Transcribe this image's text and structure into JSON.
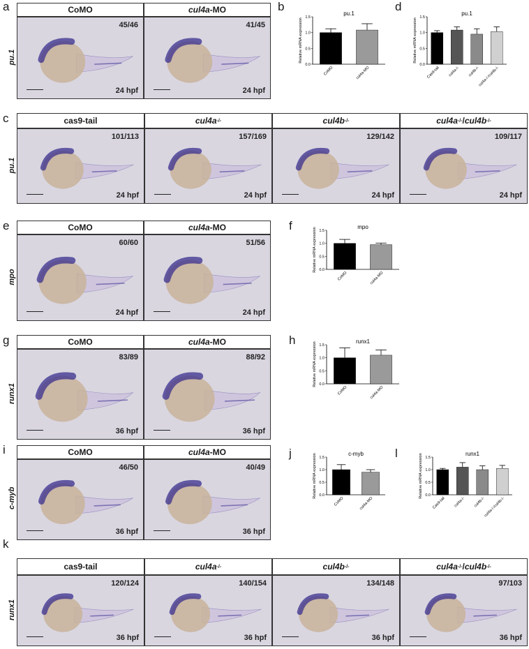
{
  "panels": {
    "a": {
      "letter": "a",
      "gene": "pu.1",
      "headers": [
        "CoMO",
        "cul4a-MO"
      ],
      "counts": [
        "45/46",
        "41/45"
      ],
      "stage": "24 hpf"
    },
    "c": {
      "letter": "c",
      "gene": "pu.1",
      "headers": [
        "cas9-tail",
        "cul4a-/-",
        "cul4b-/-",
        "cul4a-/- / cul4b-/-"
      ],
      "counts": [
        "101/113",
        "157/169",
        "129/142",
        "109/117"
      ],
      "stage": "24 hpf"
    },
    "e": {
      "letter": "e",
      "gene": "mpo",
      "headers": [
        "CoMO",
        "cul4a-MO"
      ],
      "counts": [
        "60/60",
        "51/56"
      ],
      "stage": "24 hpf"
    },
    "g": {
      "letter": "g",
      "gene": "runx1",
      "headers": [
        "CoMO",
        "cul4a-MO"
      ],
      "counts": [
        "83/89",
        "88/92"
      ],
      "stage": "36 hpf"
    },
    "i": {
      "letter": "i",
      "gene": "c-myb",
      "headers": [
        "CoMO",
        "cul4a-MO"
      ],
      "counts": [
        "46/50",
        "40/49"
      ],
      "stage": "36 hpf"
    },
    "k": {
      "letter": "k",
      "gene": "runx1",
      "headers": [
        "cas9-tail",
        "cul4a-/-",
        "cul4b-/-",
        "cul4a-/- / cul4b-/-"
      ],
      "counts": [
        "120/124",
        "140/154",
        "134/148",
        "97/103"
      ],
      "stage": "36 hpf"
    }
  },
  "colors": {
    "bar1": "#000000",
    "bar2": "#555555",
    "bar3": "#8a8a8a",
    "bar4": "#d0d0d0",
    "embryo_stain": "#3a2f8f",
    "embryo_yolk": "#c8b39a",
    "bg_photo": "#d9d6e0"
  },
  "chart_data": [
    {
      "id": "b",
      "type": "bar",
      "title": "pu.1",
      "ylabel": "Relative mRNA expression",
      "categories": [
        "CoMO",
        "cul4a-MO"
      ],
      "values": [
        1.0,
        1.08
      ],
      "errors": [
        0.12,
        0.2
      ],
      "ylim": [
        0,
        1.5
      ],
      "yticks": [
        "0.0",
        "0.5",
        "1.0",
        "1.5"
      ]
    },
    {
      "id": "d",
      "type": "bar",
      "title": "pu.1",
      "ylabel": "Relative mRNA expression",
      "categories": [
        "Cas9-tail",
        "cul4a-/-",
        "cul4b-/-",
        "cul4a-/-/cul4b-/-"
      ],
      "values": [
        1.0,
        1.08,
        0.95,
        1.03
      ],
      "errors": [
        0.06,
        0.1,
        0.17,
        0.15
      ],
      "ylim": [
        0,
        1.5
      ],
      "yticks": [
        "0.0",
        "0.5",
        "1.0",
        "1.5"
      ]
    },
    {
      "id": "f",
      "type": "bar",
      "title": "mpo",
      "ylabel": "Relative mRNA expression",
      "categories": [
        "CoMO",
        "cul4a-MO"
      ],
      "values": [
        1.0,
        0.95
      ],
      "errors": [
        0.15,
        0.06
      ],
      "ylim": [
        0,
        1.5
      ],
      "yticks": [
        "0.0",
        "0.5",
        "1.0",
        "1.5"
      ]
    },
    {
      "id": "h",
      "type": "bar",
      "title": "runx1",
      "ylabel": "Relative mRNA expression",
      "categories": [
        "CoMO",
        "cul4a-MO"
      ],
      "values": [
        1.0,
        1.1
      ],
      "errors": [
        0.38,
        0.2
      ],
      "ylim": [
        0,
        1.5
      ],
      "yticks": [
        "0.0",
        "0.5",
        "1.0",
        "1.5"
      ]
    },
    {
      "id": "j",
      "type": "bar",
      "title": "c-myb",
      "ylabel": "Relative mRNA expression",
      "categories": [
        "CoMO",
        "cul4a-MO"
      ],
      "values": [
        1.0,
        0.9
      ],
      "errors": [
        0.2,
        0.1
      ],
      "ylim": [
        0,
        1.5
      ],
      "yticks": [
        "0.0",
        "0.5",
        "1.0",
        "1.5"
      ]
    },
    {
      "id": "l",
      "type": "bar",
      "title": "runx1",
      "ylabel": "Relative mRNA expression",
      "categories": [
        "Cas9-tail",
        "cul4a-/-",
        "cul4b-/-",
        "cul4a-/-/cul4b-/-"
      ],
      "values": [
        1.0,
        1.1,
        1.0,
        1.05
      ],
      "errors": [
        0.05,
        0.18,
        0.15,
        0.12
      ],
      "ylim": [
        0,
        1.5
      ],
      "yticks": [
        "0.0",
        "0.5",
        "1.0",
        "1.5"
      ]
    }
  ]
}
